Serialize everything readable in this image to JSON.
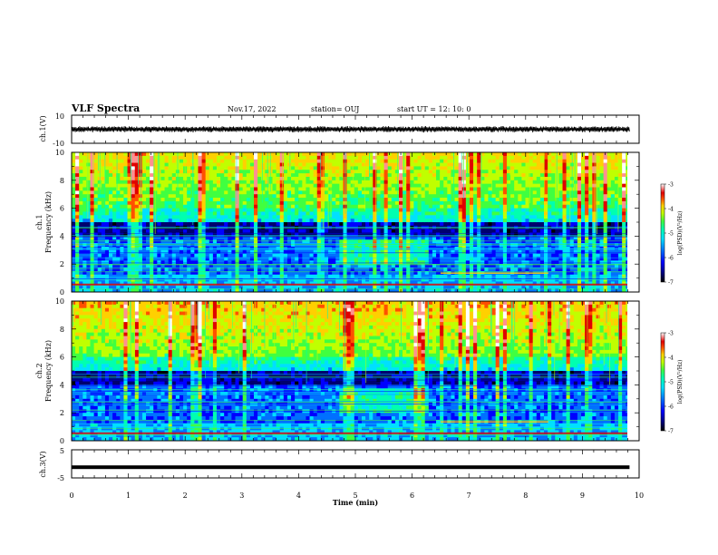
{
  "header": {
    "title": "VLF Spectra",
    "date": "Nov.17, 2022",
    "station": "station= OUJ",
    "start_ut": "start  UT  =  12: 10: 0"
  },
  "colormap": [
    "#000000",
    "#00006e",
    "#0000ff",
    "#0070ff",
    "#00e0ff",
    "#00ffb0",
    "#40ff40",
    "#c0ff00",
    "#ffd000",
    "#ff5000",
    "#e00000",
    "#ff9090",
    "#ffffff"
  ],
  "chart_data": [
    {
      "type": "line",
      "ylabel": "ch.1(V)",
      "ylim": [
        -10,
        10
      ],
      "y_ticklabels": [
        "10",
        "-10"
      ],
      "x_range": [
        0,
        10
      ],
      "note_values": "broadband waveform, amplitude roughly ±2 V around 0",
      "approx_amplitude_v": 2
    },
    {
      "type": "heatmap",
      "ylabel": "ch.1\nFrequency (kHz)",
      "ylabel_parts": [
        "ch.1",
        "Frequency  (kHz)"
      ],
      "ylim": [
        0,
        10
      ],
      "y_ticklabels": [
        "0",
        "2",
        "4",
        "6",
        "8",
        "10"
      ],
      "x_range": [
        0,
        10
      ],
      "colorbar": {
        "label": "log(PSD)(V²/Hz)",
        "range": [
          -7,
          -3
        ],
        "ticklabels": [
          "-3",
          "-4",
          "-5",
          "-6",
          "-7"
        ]
      },
      "features": {
        "dark_band_khz": [
          4.0,
          5.0
        ],
        "enhanced_band_start_min": 4.7,
        "enhanced_band_end_min": 6.3,
        "enhanced_band_khz": [
          2.0,
          3.8
        ]
      }
    },
    {
      "type": "heatmap",
      "ylabel": "ch.2\nFrequency (kHz)",
      "ylabel_parts": [
        "ch.2",
        "Frequency  (kHz)"
      ],
      "ylim": [
        0,
        10
      ],
      "y_ticklabels": [
        "0",
        "2",
        "4",
        "6",
        "8",
        "10"
      ],
      "x_range": [
        0,
        10
      ],
      "colorbar": {
        "label": "log(PSD)(V²/Hz)",
        "range": [
          -7,
          -3
        ],
        "ticklabels": [
          "-3",
          "-4",
          "-5",
          "-6",
          "-7"
        ]
      },
      "features": {
        "dark_band_khz": [
          4.0,
          5.0
        ],
        "enhanced_band_start_min": 4.7,
        "enhanced_band_end_min": 6.3,
        "enhanced_band_khz": [
          2.0,
          3.8
        ]
      }
    },
    {
      "type": "line",
      "ylabel": "ch.3(V)",
      "ylim": [
        -5,
        5
      ],
      "y_ticklabels": [
        "5",
        "-5"
      ],
      "x_range": [
        0,
        10
      ],
      "approx_constant_value_v": -1.2
    }
  ],
  "xaxis": {
    "label": "Time  (min)",
    "range": [
      0,
      10
    ],
    "data_end_min": 9.83,
    "ticklabels": [
      "0",
      "1",
      "2",
      "3",
      "4",
      "5",
      "6",
      "7",
      "8",
      "9",
      "10"
    ]
  }
}
